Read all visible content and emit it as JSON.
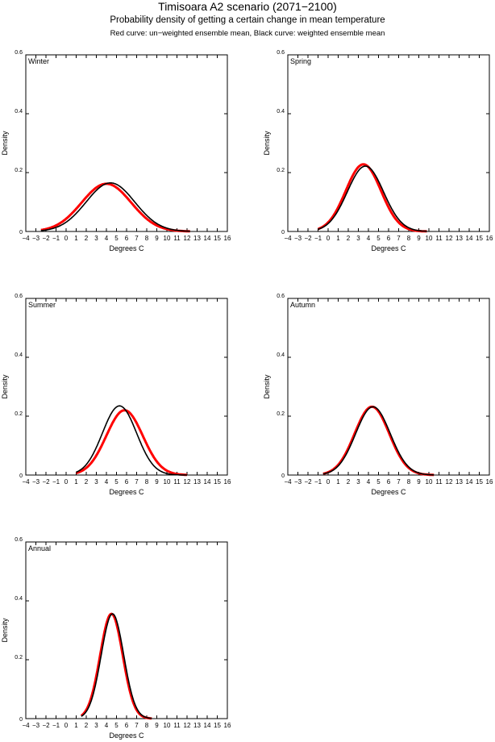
{
  "header": {
    "title": "Timisoara A2 scenario (2071−2100)",
    "subtitle": "Probability density of getting a certain change in mean temperature",
    "legend_note": "Red curve: un−weighted ensemble mean, Black curve: weighted ensemble mean"
  },
  "colors": {
    "unweighted": "#ff0000",
    "weighted": "#000000"
  },
  "chart_data": [
    {
      "type": "line",
      "title": "Winter",
      "xlabel": "Degrees C",
      "ylabel": "Density",
      "xlim": [
        -4,
        16
      ],
      "ylim": [
        0,
        0.6
      ],
      "xticks": [
        -4,
        -3,
        -2,
        -1,
        0,
        1,
        2,
        3,
        4,
        5,
        6,
        7,
        8,
        9,
        10,
        11,
        12,
        13,
        14,
        15,
        16
      ],
      "yticks": [
        0,
        0.2,
        0.4,
        0.6
      ],
      "xrange": [
        -2.5,
        12.3
      ],
      "series": [
        {
          "name": "un-weighted ensemble mean",
          "mean": 4.0,
          "sd": 2.46,
          "peak": 0.162
        },
        {
          "name": "weighted ensemble mean",
          "mean": 4.4,
          "sd": 2.42,
          "peak": 0.165
        }
      ]
    },
    {
      "type": "line",
      "title": "Spring",
      "xlabel": "Degrees C",
      "ylabel": "Density",
      "xlim": [
        -4,
        16
      ],
      "ylim": [
        0,
        0.6
      ],
      "xticks": [
        -4,
        -3,
        -2,
        -1,
        0,
        1,
        2,
        3,
        4,
        5,
        6,
        7,
        8,
        9,
        10,
        11,
        12,
        13,
        14,
        15,
        16
      ],
      "yticks": [
        0,
        0.2,
        0.4,
        0.6
      ],
      "xrange": [
        -1,
        9.8
      ],
      "series": [
        {
          "name": "un-weighted ensemble mean",
          "mean": 3.5,
          "sd": 1.75,
          "peak": 0.228
        },
        {
          "name": "weighted ensemble mean",
          "mean": 3.7,
          "sd": 1.8,
          "peak": 0.222
        }
      ]
    },
    {
      "type": "line",
      "title": "Summer",
      "xlabel": "Degrees C",
      "ylabel": "Density",
      "xlim": [
        -4,
        16
      ],
      "ylim": [
        0,
        0.6
      ],
      "xticks": [
        -4,
        -3,
        -2,
        -1,
        0,
        1,
        2,
        3,
        4,
        5,
        6,
        7,
        8,
        9,
        10,
        11,
        12,
        13,
        14,
        15,
        16
      ],
      "yticks": [
        0,
        0.2,
        0.4,
        0.6
      ],
      "xrange": [
        1,
        12
      ],
      "series": [
        {
          "name": "un-weighted ensemble mean",
          "mean": 5.8,
          "sd": 1.81,
          "peak": 0.22
        },
        {
          "name": "weighted ensemble mean",
          "mean": 5.3,
          "sd": 1.7,
          "peak": 0.235
        }
      ]
    },
    {
      "type": "line",
      "title": "Autumn",
      "xlabel": "Degrees C",
      "ylabel": "Density",
      "xlim": [
        -4,
        16
      ],
      "ylim": [
        0,
        0.6
      ],
      "xticks": [
        -4,
        -3,
        -2,
        -1,
        0,
        1,
        2,
        3,
        4,
        5,
        6,
        7,
        8,
        9,
        10,
        11,
        12,
        13,
        14,
        15,
        16
      ],
      "yticks": [
        0,
        0.2,
        0.4,
        0.6
      ],
      "xrange": [
        -0.5,
        10.5
      ],
      "series": [
        {
          "name": "un-weighted ensemble mean",
          "mean": 4.35,
          "sd": 1.72,
          "peak": 0.232
        },
        {
          "name": "weighted ensemble mean",
          "mean": 4.45,
          "sd": 1.72,
          "peak": 0.232
        }
      ]
    },
    {
      "type": "line",
      "title": "Annual",
      "xlabel": "Degrees C",
      "ylabel": "Density",
      "xlim": [
        -4,
        16
      ],
      "ylim": [
        0,
        0.6
      ],
      "xticks": [
        -4,
        -3,
        -2,
        -1,
        0,
        1,
        2,
        3,
        4,
        5,
        6,
        7,
        8,
        9,
        10,
        11,
        12,
        13,
        14,
        15,
        16
      ],
      "yticks": [
        0,
        0.2,
        0.4,
        0.6
      ],
      "xrange": [
        1.5,
        8.5
      ],
      "series": [
        {
          "name": "un-weighted ensemble mean",
          "mean": 4.5,
          "sd": 1.12,
          "peak": 0.356
        },
        {
          "name": "weighted ensemble mean",
          "mean": 4.6,
          "sd": 1.12,
          "peak": 0.356
        }
      ]
    }
  ]
}
